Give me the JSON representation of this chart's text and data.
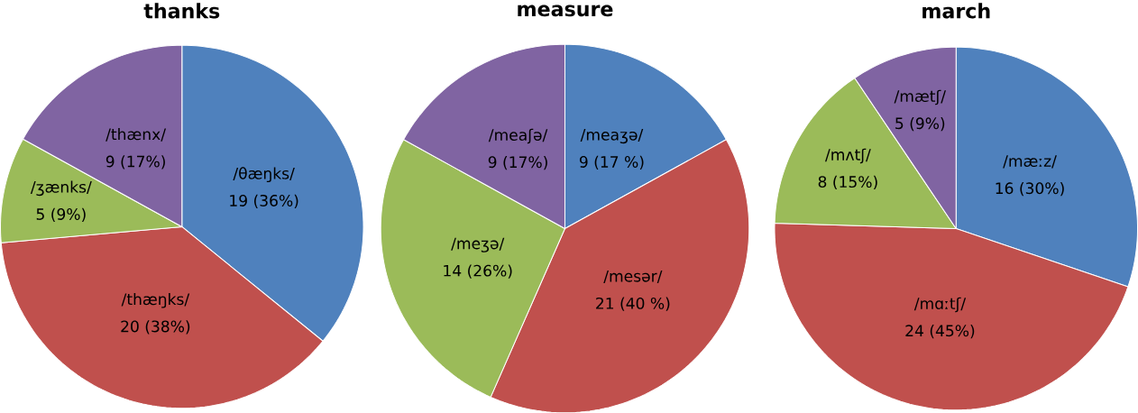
{
  "chart_data": [
    {
      "type": "pie",
      "title": "thanks",
      "categories": [
        "/θæŋks/",
        "/thæŋks/",
        "/ʒænks/",
        "/thænx/"
      ],
      "values": [
        19,
        20,
        5,
        9
      ],
      "value_labels": [
        "19 (36%)",
        "20 (38%)",
        "5 (9%)",
        "9 (17%)"
      ],
      "colors": [
        "#4f81bd",
        "#c0504d",
        "#9bbb59",
        "#8064a2"
      ]
    },
    {
      "type": "pie",
      "title": "measure",
      "categories": [
        "/meaʒə/",
        "/mesər/",
        "/meʒə/",
        "/meaʃə/"
      ],
      "values": [
        9,
        21,
        14,
        9
      ],
      "value_labels": [
        "9 (17 %)",
        "21 (40 %)",
        "14 (26%)",
        "9 (17%)"
      ],
      "colors": [
        "#4f81bd",
        "#c0504d",
        "#9bbb59",
        "#8064a2"
      ]
    },
    {
      "type": "pie",
      "title": "march",
      "categories": [
        "/mæːz/",
        "/mɑːtʃ/",
        "/mʌtʃ/",
        "/mætʃ/"
      ],
      "values": [
        16,
        24,
        8,
        5
      ],
      "value_labels": [
        "16 (30%)",
        "24 (45%)",
        "8 (15%)",
        "5 (9%)"
      ],
      "colors": [
        "#4f81bd",
        "#c0504d",
        "#9bbb59",
        "#8064a2"
      ]
    }
  ]
}
